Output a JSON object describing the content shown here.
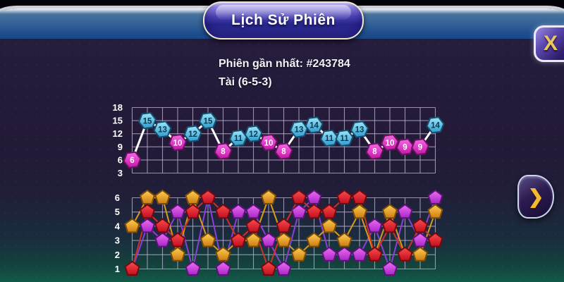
{
  "window": {
    "title": "Lịch Sử Phiên"
  },
  "header": {
    "latest_session": "Phiên gần nhất: #243784",
    "latest_result": "Tài (6-5-3)"
  },
  "close_button": {
    "glyph": "X"
  },
  "next_button": {
    "glyph": "❯"
  },
  "colors": {
    "axis_text": "#ffffff",
    "grid": "#b6accb",
    "sum_line": "#ffffff",
    "tai": {
      "fill": [
        "#9de6fa",
        "#2d9cce"
      ],
      "border": "#174f6d",
      "text": "#0c3950"
    },
    "xiu": {
      "fill": [
        "#f968e9",
        "#c315a5"
      ],
      "border": "#6d1160",
      "text": "#ffffff"
    }
  },
  "chart_data": [
    {
      "type": "line",
      "name": "sum-history",
      "marker": "hexagon",
      "grid": true,
      "ylim": [
        3,
        18
      ],
      "yticks": [
        18,
        15,
        12,
        9,
        6,
        3
      ],
      "tai_min": 11,
      "x": [
        1,
        2,
        3,
        4,
        5,
        6,
        7,
        8,
        9,
        10,
        11,
        12,
        13,
        14,
        15,
        16,
        17,
        18,
        19,
        20,
        21
      ],
      "values": [
        6,
        15,
        13,
        10,
        12,
        15,
        8,
        11,
        12,
        10,
        8,
        13,
        14,
        11,
        11,
        13,
        8,
        10,
        9,
        9,
        14
      ]
    },
    {
      "type": "line",
      "name": "dice-history",
      "marker": "pentagon",
      "grid": true,
      "ylim": [
        1,
        6
      ],
      "yticks": [
        6,
        5,
        4,
        3,
        2,
        1
      ],
      "x": [
        1,
        2,
        3,
        4,
        5,
        6,
        7,
        8,
        9,
        10,
        11,
        12,
        13,
        14,
        15,
        16,
        17,
        18,
        19,
        20,
        21
      ],
      "series": [
        {
          "name": "die-magenta",
          "line_color": "#8b3fd6",
          "fill": [
            "#ef6df2",
            "#a827c7"
          ],
          "border": "#5c1376",
          "values": [
            1,
            4,
            3,
            5,
            1,
            6,
            1,
            5,
            5,
            3,
            1,
            5,
            6,
            2,
            2,
            2,
            4,
            1,
            5,
            3,
            6
          ]
        },
        {
          "name": "die-gold",
          "line_color": "#d99b1d",
          "fill": [
            "#ffd054",
            "#cd7c10"
          ],
          "border": "#7c4c06",
          "values": [
            4,
            6,
            6,
            2,
            6,
            3,
            2,
            3,
            3,
            6,
            3,
            2,
            3,
            4,
            3,
            5,
            2,
            5,
            2,
            2,
            5
          ]
        },
        {
          "name": "die-red",
          "line_color": "#cc3326",
          "fill": [
            "#fb4d4d",
            "#c10e1e"
          ],
          "border": "#6e0a12",
          "values": [
            1,
            5,
            4,
            3,
            5,
            6,
            5,
            3,
            4,
            1,
            4,
            6,
            5,
            5,
            6,
            6,
            2,
            4,
            2,
            4,
            3
          ]
        }
      ]
    }
  ]
}
